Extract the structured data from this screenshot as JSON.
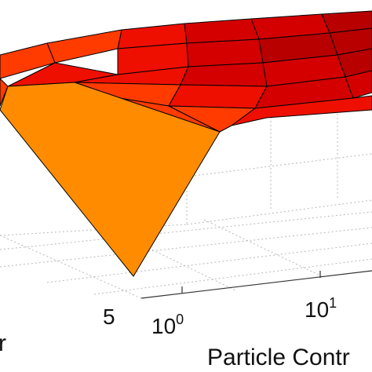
{
  "chart_data": {
    "type": "surface",
    "xlabel": "Particle Contr",
    "ylabel_fragment": "r",
    "x_ticks": [
      {
        "base": "10",
        "exp": "0"
      },
      {
        "base": "10",
        "exp": "1"
      }
    ],
    "y_ticks": [
      "5"
    ],
    "x_scale": "log",
    "grid": true,
    "colormap": [
      "#ff8c00",
      "#ff3b00",
      "#ee0f00",
      "#d40000",
      "#b80000"
    ]
  }
}
